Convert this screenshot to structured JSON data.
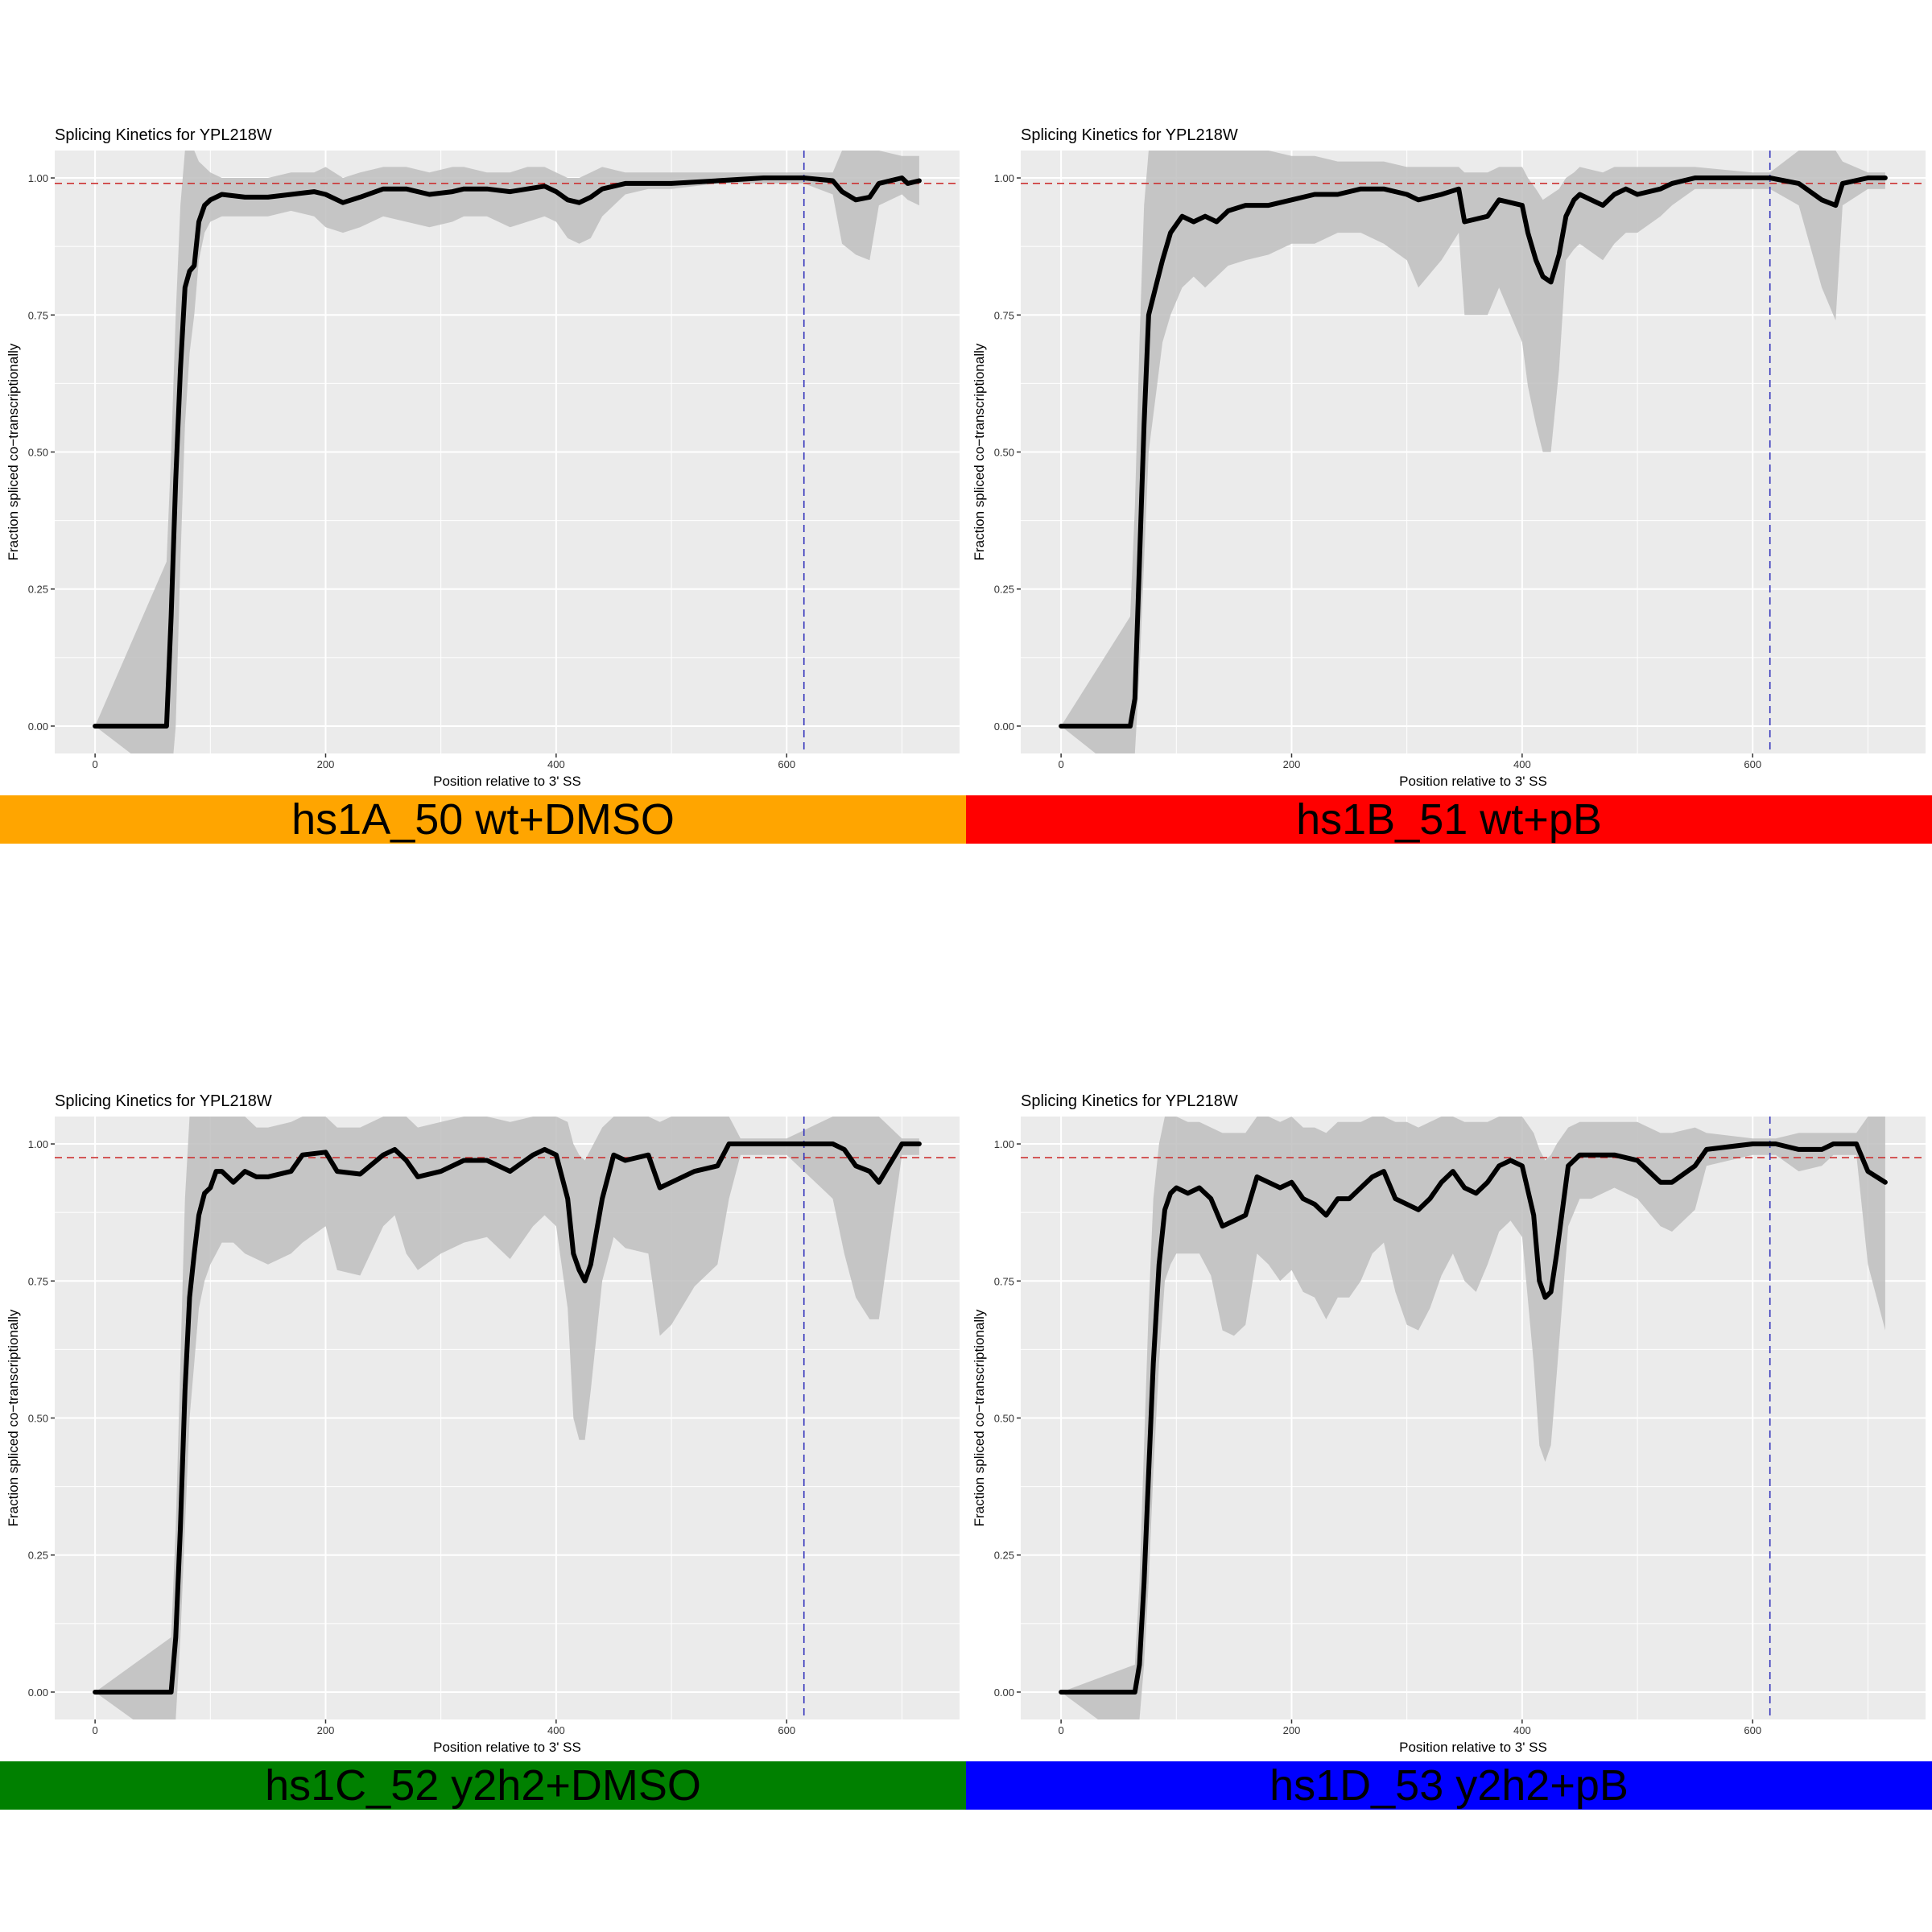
{
  "page": {
    "panel_title": "Splicing Kinetics for YPL218W",
    "x_label": "Position relative to 3' SS",
    "y_label": "Fraction spliced co−transcriptionally"
  },
  "panels": [
    {
      "label": "hs1A_50 wt+DMSO",
      "color": "#FFA500"
    },
    {
      "label": "hs1B_51 wt+pB",
      "color": "#FF0000"
    },
    {
      "label": "hs1C_52 y2h2+DMSO",
      "color": "#008000"
    },
    {
      "label": "hs1D_53 y2h2+pB",
      "color": "#0000FF"
    }
  ],
  "colors": {
    "panel_background": "#EBEBEB",
    "grid": "#FFFFFF",
    "ribbon": "#BEBEBE",
    "line": "#000000",
    "reference_h": "#CC3333",
    "reference_v": "#3333BB"
  },
  "chart_data": [
    {
      "type": "line",
      "title": "Splicing Kinetics for YPL218W",
      "xlabel": "Position relative to 3' SS",
      "ylabel": "Fraction spliced co−transcriptionally",
      "xlim": [
        -35,
        750
      ],
      "ylim": [
        -0.05,
        1.05
      ],
      "x_ticks": [
        "0",
        "200",
        "400",
        "600"
      ],
      "y_ticks": [
        "0.00",
        "0.25",
        "0.50",
        "0.75",
        "1.00"
      ],
      "hline": 0.99,
      "vline": 615,
      "series": [
        {
          "x": [
            0,
            62,
            66,
            70,
            74,
            78,
            82,
            86,
            90,
            95,
            100,
            110,
            130,
            150,
            170,
            190,
            200,
            215,
            230,
            250,
            270,
            290,
            310,
            320,
            340,
            360,
            375,
            390,
            400,
            410,
            420,
            430,
            440,
            460,
            480,
            500,
            540,
            580,
            615,
            640,
            648,
            660,
            672,
            680,
            700,
            705,
            715
          ],
          "y": [
            0,
            0,
            0.2,
            0.45,
            0.65,
            0.8,
            0.83,
            0.84,
            0.92,
            0.95,
            0.96,
            0.97,
            0.965,
            0.965,
            0.97,
            0.975,
            0.97,
            0.955,
            0.965,
            0.98,
            0.98,
            0.97,
            0.975,
            0.98,
            0.98,
            0.975,
            0.98,
            0.985,
            0.975,
            0.96,
            0.955,
            0.965,
            0.98,
            0.99,
            0.99,
            0.99,
            0.995,
            1.0,
            1.0,
            0.995,
            0.975,
            0.96,
            0.965,
            0.99,
            1.0,
            0.99,
            0.995
          ],
          "lower": [
            0,
            -0.1,
            -0.1,
            0.0,
            0.3,
            0.55,
            0.68,
            0.75,
            0.85,
            0.9,
            0.92,
            0.93,
            0.93,
            0.93,
            0.94,
            0.93,
            0.91,
            0.9,
            0.91,
            0.93,
            0.92,
            0.91,
            0.92,
            0.93,
            0.93,
            0.91,
            0.92,
            0.93,
            0.92,
            0.89,
            0.88,
            0.89,
            0.93,
            0.97,
            0.98,
            0.98,
            0.99,
            0.99,
            0.99,
            0.97,
            0.88,
            0.86,
            0.85,
            0.95,
            0.97,
            0.96,
            0.95
          ],
          "upper": [
            0,
            0.3,
            0.5,
            0.75,
            0.95,
            1.05,
            1.05,
            1.05,
            1.03,
            1.02,
            1.01,
            1.0,
            1.0,
            1.0,
            1.01,
            1.01,
            1.02,
            1.0,
            1.01,
            1.02,
            1.02,
            1.01,
            1.02,
            1.02,
            1.01,
            1.01,
            1.02,
            1.02,
            1.01,
            1.0,
            1.0,
            1.01,
            1.02,
            1.01,
            1.01,
            1.01,
            1.01,
            1.01,
            1.01,
            1.01,
            1.05,
            1.05,
            1.05,
            1.05,
            1.04,
            1.04,
            1.04
          ]
        }
      ]
    },
    {
      "type": "line",
      "title": "Splicing Kinetics for YPL218W",
      "xlabel": "Position relative to 3' SS",
      "ylabel": "Fraction spliced co−transcriptionally",
      "xlim": [
        -35,
        750
      ],
      "ylim": [
        -0.05,
        1.05
      ],
      "x_ticks": [
        "0",
        "200",
        "400",
        "600"
      ],
      "y_ticks": [
        "0.00",
        "0.25",
        "0.50",
        "0.75",
        "1.00"
      ],
      "hline": 0.99,
      "vline": 615,
      "series": [
        {
          "x": [
            0,
            60,
            64,
            68,
            72,
            76,
            82,
            88,
            95,
            105,
            115,
            125,
            135,
            145,
            160,
            180,
            200,
            220,
            240,
            260,
            280,
            300,
            310,
            330,
            345,
            350,
            370,
            380,
            400,
            405,
            412,
            418,
            425,
            432,
            438,
            445,
            450,
            470,
            480,
            490,
            500,
            520,
            530,
            550,
            600,
            615,
            640,
            660,
            672,
            678,
            700,
            715
          ],
          "y": [
            0,
            0,
            0.05,
            0.3,
            0.55,
            0.75,
            0.8,
            0.85,
            0.9,
            0.93,
            0.92,
            0.93,
            0.92,
            0.94,
            0.95,
            0.95,
            0.96,
            0.97,
            0.97,
            0.98,
            0.98,
            0.97,
            0.96,
            0.97,
            0.98,
            0.92,
            0.93,
            0.96,
            0.95,
            0.9,
            0.85,
            0.82,
            0.81,
            0.86,
            0.93,
            0.96,
            0.97,
            0.95,
            0.97,
            0.98,
            0.97,
            0.98,
            0.99,
            1.0,
            1.0,
            1.0,
            0.99,
            0.96,
            0.95,
            0.99,
            1.0,
            1.0
          ],
          "lower": [
            0,
            -0.1,
            -0.05,
            0.1,
            0.3,
            0.5,
            0.6,
            0.7,
            0.75,
            0.8,
            0.82,
            0.8,
            0.82,
            0.84,
            0.85,
            0.86,
            0.88,
            0.88,
            0.9,
            0.9,
            0.88,
            0.85,
            0.8,
            0.85,
            0.9,
            0.75,
            0.75,
            0.8,
            0.7,
            0.62,
            0.55,
            0.5,
            0.5,
            0.65,
            0.85,
            0.87,
            0.88,
            0.85,
            0.88,
            0.9,
            0.9,
            0.93,
            0.95,
            0.98,
            0.98,
            0.98,
            0.95,
            0.8,
            0.74,
            0.95,
            0.98,
            0.98
          ],
          "upper": [
            0,
            0.2,
            0.4,
            0.7,
            0.95,
            1.05,
            1.05,
            1.05,
            1.05,
            1.05,
            1.05,
            1.05,
            1.05,
            1.05,
            1.05,
            1.05,
            1.04,
            1.04,
            1.03,
            1.03,
            1.03,
            1.02,
            1.02,
            1.02,
            1.02,
            1.01,
            1.01,
            1.02,
            1.02,
            1.0,
            0.98,
            0.96,
            0.97,
            0.98,
            1.0,
            1.01,
            1.02,
            1.01,
            1.02,
            1.02,
            1.02,
            1.02,
            1.02,
            1.02,
            1.01,
            1.01,
            1.05,
            1.05,
            1.05,
            1.03,
            1.01,
            1.01
          ]
        }
      ]
    },
    {
      "type": "line",
      "title": "Splicing Kinetics for YPL218W",
      "xlabel": "Position relative to 3' SS",
      "ylabel": "Fraction spliced co−transcriptionally",
      "xlim": [
        -35,
        750
      ],
      "ylim": [
        -0.05,
        1.05
      ],
      "x_ticks": [
        "0",
        "200",
        "400",
        "600"
      ],
      "y_ticks": [
        "0.00",
        "0.25",
        "0.50",
        "0.75",
        "1.00"
      ],
      "hline": 0.975,
      "vline": 615,
      "series": [
        {
          "x": [
            0,
            66,
            70,
            74,
            78,
            82,
            86,
            90,
            95,
            100,
            105,
            110,
            120,
            130,
            140,
            150,
            170,
            180,
            200,
            210,
            230,
            250,
            260,
            270,
            280,
            300,
            320,
            340,
            360,
            380,
            390,
            400,
            410,
            415,
            420,
            425,
            430,
            440,
            450,
            460,
            480,
            490,
            500,
            520,
            540,
            550,
            560,
            600,
            640,
            650,
            660,
            672,
            680,
            700,
            715
          ],
          "y": [
            0,
            0,
            0.1,
            0.3,
            0.55,
            0.72,
            0.8,
            0.87,
            0.91,
            0.92,
            0.95,
            0.95,
            0.93,
            0.95,
            0.94,
            0.94,
            0.95,
            0.98,
            0.985,
            0.95,
            0.945,
            0.98,
            0.99,
            0.97,
            0.94,
            0.95,
            0.97,
            0.97,
            0.95,
            0.98,
            0.99,
            0.98,
            0.9,
            0.8,
            0.77,
            0.75,
            0.78,
            0.9,
            0.98,
            0.97,
            0.98,
            0.92,
            0.93,
            0.95,
            0.96,
            1.0,
            1.0,
            1.0,
            1.0,
            0.99,
            0.96,
            0.95,
            0.93,
            1.0,
            1.0
          ],
          "lower": [
            0,
            -0.1,
            -0.05,
            0.1,
            0.3,
            0.5,
            0.6,
            0.7,
            0.75,
            0.78,
            0.8,
            0.82,
            0.82,
            0.8,
            0.79,
            0.78,
            0.8,
            0.82,
            0.85,
            0.77,
            0.76,
            0.85,
            0.87,
            0.8,
            0.77,
            0.8,
            0.82,
            0.83,
            0.79,
            0.85,
            0.87,
            0.85,
            0.7,
            0.5,
            0.46,
            0.46,
            0.55,
            0.75,
            0.83,
            0.81,
            0.8,
            0.65,
            0.67,
            0.74,
            0.78,
            0.9,
            0.98,
            0.98,
            0.9,
            0.8,
            0.72,
            0.68,
            0.68,
            0.98,
            0.98
          ],
          "upper": [
            0,
            0.1,
            0.3,
            0.6,
            0.9,
            1.05,
            1.05,
            1.05,
            1.05,
            1.05,
            1.05,
            1.05,
            1.05,
            1.05,
            1.03,
            1.03,
            1.04,
            1.05,
            1.05,
            1.03,
            1.03,
            1.05,
            1.05,
            1.05,
            1.03,
            1.04,
            1.05,
            1.05,
            1.04,
            1.05,
            1.05,
            1.05,
            1.04,
            1.0,
            0.98,
            0.97,
            0.99,
            1.03,
            1.05,
            1.05,
            1.05,
            1.04,
            1.05,
            1.05,
            1.05,
            1.05,
            1.01,
            1.01,
            1.05,
            1.05,
            1.05,
            1.05,
            1.05,
            1.01,
            1.01
          ]
        }
      ]
    },
    {
      "type": "line",
      "title": "Splicing Kinetics for YPL218W",
      "xlabel": "Position relative to 3' SS",
      "ylabel": "Fraction spliced co−transcriptionally",
      "xlim": [
        -35,
        750
      ],
      "ylim": [
        -0.05,
        1.05
      ],
      "x_ticks": [
        "0",
        "200",
        "400",
        "600"
      ],
      "y_ticks": [
        "0.00",
        "0.25",
        "0.50",
        "0.75",
        "1.00"
      ],
      "hline": 0.975,
      "vline": 615,
      "series": [
        {
          "x": [
            0,
            64,
            68,
            72,
            76,
            80,
            85,
            90,
            95,
            100,
            110,
            120,
            130,
            140,
            150,
            160,
            170,
            180,
            190,
            200,
            210,
            220,
            230,
            240,
            250,
            260,
            270,
            280,
            290,
            300,
            310,
            320,
            330,
            340,
            350,
            360,
            370,
            380,
            390,
            400,
            410,
            415,
            420,
            425,
            430,
            440,
            450,
            460,
            480,
            500,
            520,
            530,
            550,
            560,
            600,
            620,
            640,
            660,
            670,
            690,
            700,
            715
          ],
          "y": [
            0,
            0,
            0.05,
            0.2,
            0.4,
            0.6,
            0.78,
            0.88,
            0.91,
            0.92,
            0.91,
            0.92,
            0.9,
            0.85,
            0.86,
            0.87,
            0.94,
            0.93,
            0.92,
            0.93,
            0.9,
            0.89,
            0.87,
            0.9,
            0.9,
            0.92,
            0.94,
            0.95,
            0.9,
            0.89,
            0.88,
            0.9,
            0.93,
            0.95,
            0.92,
            0.91,
            0.93,
            0.96,
            0.97,
            0.96,
            0.87,
            0.75,
            0.72,
            0.73,
            0.8,
            0.96,
            0.98,
            0.98,
            0.98,
            0.97,
            0.93,
            0.93,
            0.96,
            0.99,
            1.0,
            1.0,
            0.99,
            0.99,
            1.0,
            1.0,
            0.95,
            0.93
          ],
          "lower": [
            0,
            -0.1,
            -0.05,
            0.05,
            0.2,
            0.4,
            0.6,
            0.75,
            0.78,
            0.8,
            0.8,
            0.8,
            0.76,
            0.66,
            0.65,
            0.67,
            0.8,
            0.78,
            0.75,
            0.77,
            0.73,
            0.72,
            0.68,
            0.72,
            0.72,
            0.75,
            0.8,
            0.82,
            0.73,
            0.67,
            0.66,
            0.7,
            0.76,
            0.8,
            0.75,
            0.73,
            0.78,
            0.84,
            0.86,
            0.83,
            0.6,
            0.45,
            0.42,
            0.45,
            0.58,
            0.85,
            0.9,
            0.9,
            0.92,
            0.9,
            0.85,
            0.84,
            0.88,
            0.96,
            0.98,
            0.98,
            0.95,
            0.96,
            0.98,
            0.98,
            0.78,
            0.66
          ],
          "upper": [
            0,
            0.05,
            0.2,
            0.45,
            0.7,
            0.9,
            1.0,
            1.05,
            1.05,
            1.05,
            1.04,
            1.04,
            1.03,
            1.02,
            1.02,
            1.02,
            1.05,
            1.05,
            1.04,
            1.05,
            1.03,
            1.03,
            1.02,
            1.04,
            1.04,
            1.04,
            1.05,
            1.05,
            1.04,
            1.04,
            1.03,
            1.04,
            1.05,
            1.05,
            1.04,
            1.04,
            1.04,
            1.05,
            1.05,
            1.05,
            1.02,
            0.99,
            0.97,
            0.98,
            1.0,
            1.03,
            1.04,
            1.04,
            1.04,
            1.04,
            1.02,
            1.02,
            1.03,
            1.02,
            1.01,
            1.01,
            1.02,
            1.02,
            1.02,
            1.02,
            1.05,
            1.05
          ]
        }
      ]
    }
  ]
}
